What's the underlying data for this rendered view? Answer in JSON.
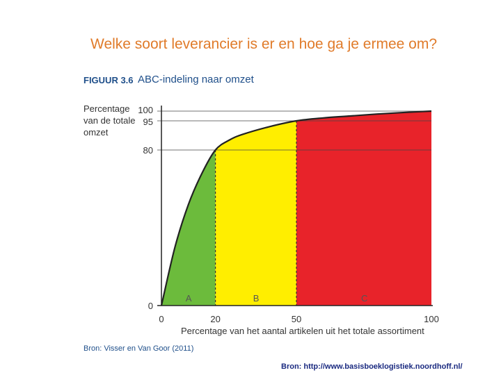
{
  "slide": {
    "title": "Welke soort leverancier is er en hoe ga je ermee om?",
    "source": "Bron: http://www.basisboeklogistiek.noordhoff.nl/"
  },
  "figure": {
    "label": "FIGUUR 3.6",
    "title": "ABC-indeling naar omzet",
    "source": "Bron: Visser en Van Goor (2011)"
  },
  "chart_data": {
    "type": "area",
    "xlabel": "Percentage van het aantal artikelen uit het totale assortiment",
    "ylabel": "Percentage van de totale omzet",
    "xlim": [
      0,
      100
    ],
    "ylim": [
      0,
      100
    ],
    "xticks": [
      "0",
      "20",
      "50",
      "100"
    ],
    "yticks": [
      "0",
      "80",
      "95",
      "100"
    ],
    "x": [
      0,
      5,
      10,
      15,
      20,
      25,
      30,
      40,
      50,
      60,
      70,
      80,
      90,
      100
    ],
    "y": [
      0,
      30,
      52,
      68,
      80,
      85,
      88,
      92,
      95,
      96.5,
      97.5,
      98.5,
      99.3,
      100
    ],
    "zones": [
      {
        "label": "A",
        "from": 0,
        "to": 20,
        "color": "#6cbb3c"
      },
      {
        "label": "B",
        "from": 20,
        "to": 50,
        "color": "#ffee00"
      },
      {
        "label": "C",
        "from": 50,
        "to": 100,
        "color": "#e8232a"
      }
    ],
    "reference_lines": [
      80,
      95
    ],
    "grid": false
  }
}
